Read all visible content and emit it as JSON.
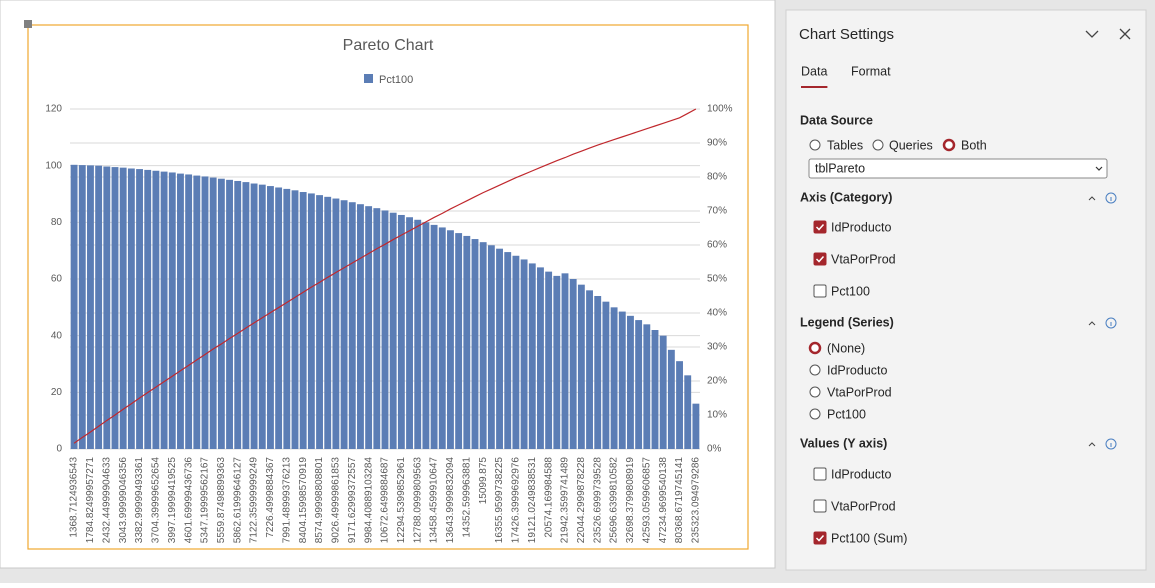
{
  "chart_data": {
    "type": "bar",
    "title": "Pareto Chart",
    "categories": [
      "1368.7124936543",
      null,
      "1784.82499957271",
      null,
      "2432.44999904633",
      null,
      "3043.99999046356",
      null,
      "3382.99999493361",
      null,
      "3704.39999652654",
      null,
      "3997.19999419525",
      null,
      "4601.69999436736",
      null,
      "5347.19999562167",
      null,
      "5559.87498899363",
      null,
      "5862.61999646127",
      null,
      "7122.35999999249",
      null,
      "7226.4999884367",
      null,
      "7991.48999376213",
      null,
      "8404.15998570919",
      null,
      "8574.99998808801",
      null,
      "9026.49999861853",
      null,
      "9171.62999372557",
      null,
      "9984.40889103284",
      null,
      "10672.6499884687",
      null,
      "12294.5399852961",
      null,
      "12788.0999809563",
      null,
      "13458.4599910647",
      null,
      "13643.9999832094",
      null,
      "14352.599963881",
      null,
      "15099.875",
      null,
      "16355.9599738225",
      null,
      "17426.3999692976",
      null,
      "19121.0249838531",
      null,
      "20574.169984588",
      null,
      "21942.3599741489",
      null,
      "22044.2999878228",
      null,
      "23526.6999739528",
      null,
      "25696.6399810582",
      null,
      "32698.3799808919",
      null,
      "42593.0599606857",
      null,
      "47234.9699540138",
      null,
      "80368.6719745141",
      null,
      "235323.094979286"
    ],
    "series": [
      {
        "name": "Pct100",
        "color": "#5b7db5",
        "values": [
          100.3,
          100.2,
          100.1,
          100,
          99.7,
          99.5,
          99.3,
          99,
          98.8,
          98.5,
          98.2,
          97.9,
          97.6,
          97.2,
          96.9,
          96.5,
          96.2,
          95.8,
          95.4,
          95,
          94.6,
          94.2,
          93.7,
          93.3,
          92.8,
          92.3,
          91.8,
          91.3,
          90.7,
          90.2,
          89.6,
          89,
          88.4,
          87.8,
          87.1,
          86.4,
          85.7,
          85,
          84.2,
          83.4,
          82.6,
          81.8,
          80.9,
          80,
          79.1,
          78.2,
          77.2,
          76.2,
          75.2,
          74.1,
          73,
          71.9,
          70.7,
          69.5,
          68.2,
          66.9,
          65.5,
          64.1,
          62.6,
          61.1,
          62,
          60,
          58,
          56,
          54,
          52,
          50,
          48.5,
          47,
          45.5,
          44,
          42,
          40,
          35,
          31,
          26,
          16
        ]
      },
      {
        "type": "line",
        "axis": "y2",
        "color": "#c0282d",
        "values": [
          1.7,
          3.4,
          5,
          6.7,
          8.4,
          10,
          11.7,
          13.3,
          15,
          16.6,
          18.2,
          19.8,
          21.4,
          23,
          24.6,
          26.2,
          27.8,
          29.4,
          30.9,
          32.5,
          34,
          35.6,
          37.1,
          38.6,
          40.1,
          41.6,
          43.1,
          44.6,
          46.1,
          47.6,
          49,
          50.5,
          51.9,
          53.3,
          54.7,
          56.1,
          57.5,
          58.9,
          60.2,
          61.6,
          62.9,
          64.2,
          65.5,
          66.8,
          68.1,
          69.3,
          70.6,
          71.8,
          73,
          74.2,
          75.4,
          76.5,
          77.6,
          78.7,
          79.8,
          80.8,
          81.8,
          82.8,
          83.8,
          84.8,
          85.7,
          86.7,
          87.6,
          88.5,
          89.4,
          90.2,
          91,
          91.8,
          92.6,
          93.4,
          94.2,
          95,
          95.8,
          96.6,
          97.4,
          98.7,
          100
        ]
      }
    ],
    "ylim": [
      0,
      120
    ],
    "yticks": [
      0,
      20,
      40,
      60,
      80,
      100,
      120
    ],
    "y2lim": [
      0,
      100
    ],
    "y2ticks": [
      {
        "value": 0,
        "label": "0%"
      },
      {
        "value": 10,
        "label": "10%"
      },
      {
        "value": 20,
        "label": "20%"
      },
      {
        "value": 30,
        "label": "30%"
      },
      {
        "value": 40,
        "label": "40%"
      },
      {
        "value": 50,
        "label": "50%"
      },
      {
        "value": 60,
        "label": "60%"
      },
      {
        "value": 70,
        "label": "70%"
      },
      {
        "value": 80,
        "label": "80%"
      },
      {
        "value": 90,
        "label": "90%"
      },
      {
        "value": 100,
        "label": "100%"
      }
    ],
    "grid": true,
    "legend": "top"
  },
  "settings": {
    "title": "Chart Settings",
    "tabs": [
      "Data",
      "Format"
    ],
    "active_tab": 0,
    "data_source": {
      "heading": "Data Source",
      "options": [
        "Tables",
        "Queries",
        "Both"
      ],
      "selected": 2,
      "table": "tblPareto"
    },
    "axis": {
      "heading": "Axis (Category)",
      "fields": [
        {
          "label": "IdProducto",
          "checked": true
        },
        {
          "label": "VtaPorProd",
          "checked": true
        },
        {
          "label": "Pct100",
          "checked": false
        }
      ]
    },
    "legend": {
      "heading": "Legend (Series)",
      "options": [
        "(None)",
        "IdProducto",
        "VtaPorProd",
        "Pct100"
      ],
      "selected": 0
    },
    "values": {
      "heading": "Values (Y axis)",
      "fields": [
        {
          "label": "IdProducto",
          "checked": false
        },
        {
          "label": "VtaPorProd",
          "checked": false
        },
        {
          "label": "Pct100 (Sum)",
          "checked": true
        }
      ]
    }
  }
}
